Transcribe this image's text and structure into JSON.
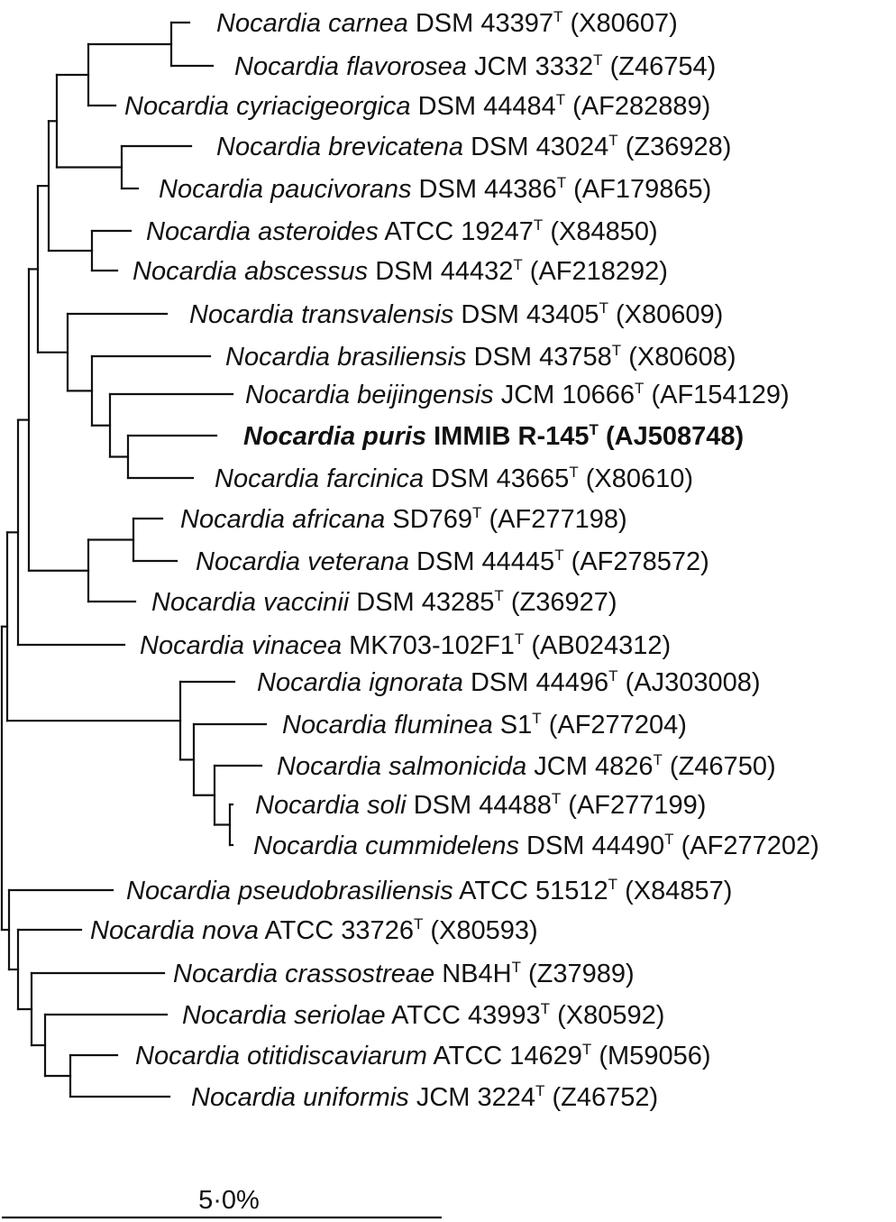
{
  "taxa": [
    {
      "species": "Nocardia carnea",
      "strain": "DSM 43397",
      "superscript": "T",
      "accession": "(X80607)",
      "bold": false
    },
    {
      "species": "Nocardia flavorosea",
      "strain": "JCM 3332",
      "superscript": "T",
      "accession": "(Z46754)",
      "bold": false
    },
    {
      "species": "Nocardia cyriacigeorgica",
      "strain": "DSM 44484",
      "superscript": "T",
      "accession": "(AF282889)",
      "bold": false
    },
    {
      "species": "Nocardia brevicatena",
      "strain": "DSM 43024",
      "superscript": "T",
      "accession": "(Z36928)",
      "bold": false
    },
    {
      "species": "Nocardia paucivorans",
      "strain": "DSM 44386",
      "superscript": "T",
      "accession": "(AF179865)",
      "bold": false
    },
    {
      "species": "Nocardia asteroides",
      "strain": "ATCC 19247",
      "superscript": "T",
      "accession": "(X84850)",
      "bold": false
    },
    {
      "species": "Nocardia abscessus",
      "strain": "DSM 44432",
      "superscript": "T",
      "accession": "(AF218292)",
      "bold": false
    },
    {
      "species": "Nocardia transvalensis",
      "strain": "DSM 43405",
      "superscript": "T",
      "accession": "(X80609)",
      "bold": false
    },
    {
      "species": "Nocardia brasiliensis",
      "strain": "DSM 43758",
      "superscript": "T",
      "accession": "(X80608)",
      "bold": false
    },
    {
      "species": "Nocardia beijingensis",
      "strain": "JCM 10666",
      "superscript": "T",
      "accession": "(AF154129)",
      "bold": false
    },
    {
      "species": "Nocardia puris",
      "strain": "IMMIB R-145",
      "superscript": "T",
      "accession": "(AJ508748)",
      "bold": true
    },
    {
      "species": "Nocardia farcinica",
      "strain": "DSM 43665",
      "superscript": "T",
      "accession": "(X80610)",
      "bold": false
    },
    {
      "species": "Nocardia africana",
      "strain": "SD769",
      "superscript": "T",
      "accession": "(AF277198)",
      "bold": false
    },
    {
      "species": "Nocardia veterana",
      "strain": "DSM 44445",
      "superscript": "T",
      "accession": "(AF278572)",
      "bold": false
    },
    {
      "species": "Nocardia vaccinii",
      "strain": "DSM 43285",
      "superscript": "T",
      "accession": "(Z36927)",
      "bold": false
    },
    {
      "species": "Nocardia vinacea",
      "strain": "MK703-102F1",
      "superscript": "T",
      "accession": "(AB024312)",
      "bold": false
    },
    {
      "species": "Nocardia ignorata",
      "strain": "DSM 44496",
      "superscript": "T",
      "accession": "(AJ303008)",
      "bold": false
    },
    {
      "species": "Nocardia fluminea",
      "strain": "S1",
      "superscript": "T",
      "accession": "(AF277204)",
      "bold": false
    },
    {
      "species": "Nocardia salmonicida",
      "strain": "JCM 4826",
      "superscript": "T",
      "accession": "(Z46750)",
      "bold": false
    },
    {
      "species": "Nocardia soli",
      "strain": "DSM 44488",
      "superscript": "T",
      "accession": "(AF277199)",
      "bold": false
    },
    {
      "species": "Nocardia cummidelens",
      "strain": "DSM 44490",
      "superscript": "T",
      "accession": "(AF277202)",
      "bold": false
    },
    {
      "species": "Nocardia pseudobrasiliensis",
      "strain": "ATCC 51512",
      "superscript": "T",
      "accession": "(X84857)",
      "bold": false
    },
    {
      "species": "Nocardia nova",
      "strain": "ATCC 33726",
      "superscript": "T",
      "accession": "(X80593)",
      "bold": false
    },
    {
      "species": "Nocardia crassostreae",
      "strain": "NB4H",
      "superscript": "T",
      "accession": "(Z37989)",
      "bold": false
    },
    {
      "species": "Nocardia seriolae",
      "strain": "ATCC 43993",
      "superscript": "T",
      "accession": "(X80592)",
      "bold": false
    },
    {
      "species": "Nocardia otitidiscaviarum",
      "strain": "ATCC 14629",
      "superscript": "T",
      "accession": "(M59056)",
      "bold": false
    },
    {
      "species": "Nocardia uniformis",
      "strain": "JCM 3224",
      "superscript": "T",
      "accession": "(Z46752)",
      "bold": false
    }
  ],
  "scale_bar": {
    "label": "5·0%"
  },
  "colors": {
    "line": "#111111",
    "text": "#111111",
    "background": "#ffffff"
  }
}
